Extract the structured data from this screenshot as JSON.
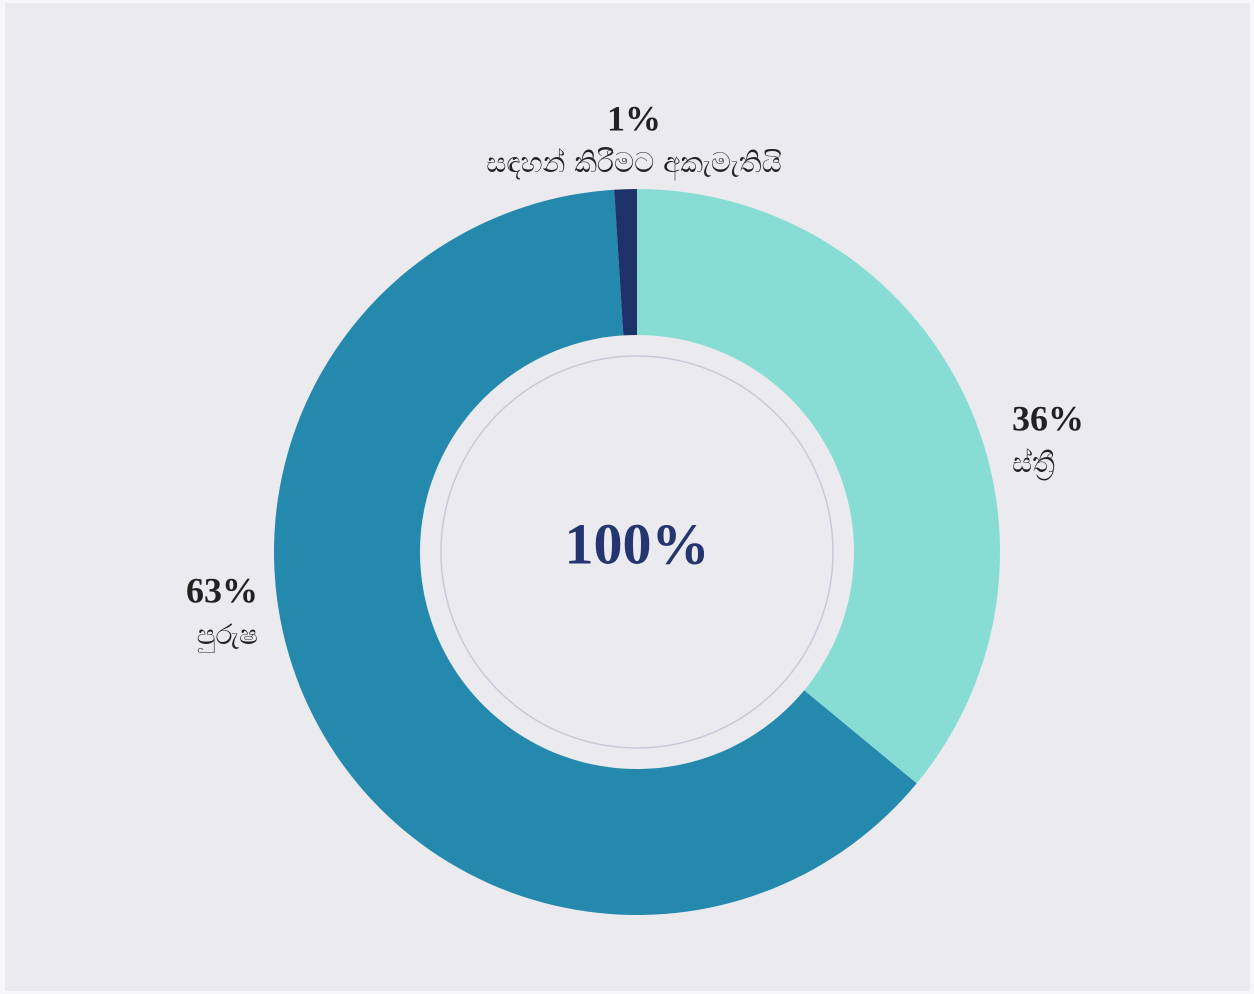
{
  "chart_data": {
    "type": "donut",
    "categories": [
      "ස්ත්‍රී",
      "පුරුෂ",
      "සඳහන් කිරීමට අකැමැතියි"
    ],
    "values": [
      36,
      63,
      1
    ],
    "value_labels": [
      "36%",
      "63%",
      "1%"
    ],
    "colors": [
      "#87ddd4",
      "#2589ae",
      "#1f3169"
    ],
    "center_label": "100%"
  }
}
